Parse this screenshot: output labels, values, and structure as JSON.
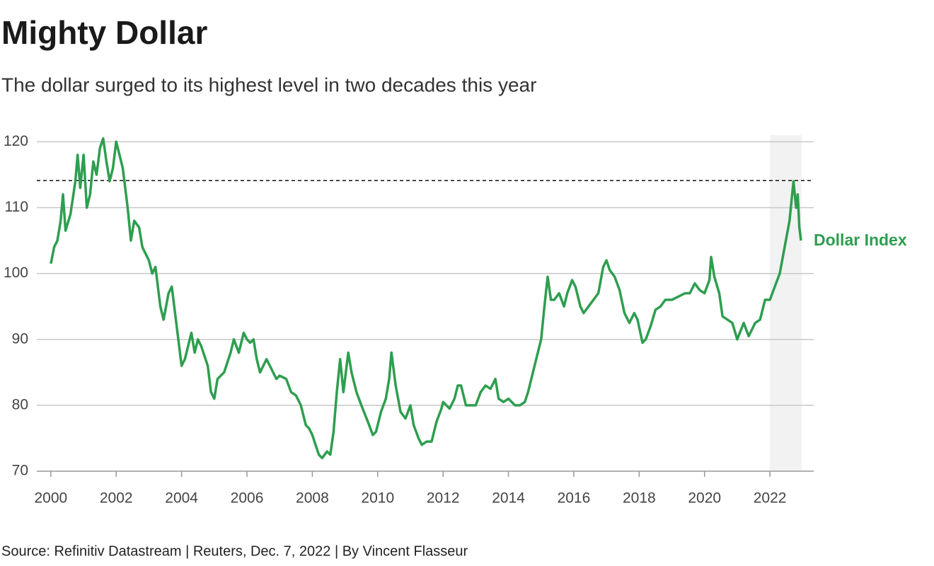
{
  "chart_data": {
    "type": "line",
    "title": "Mighty Dollar",
    "subtitle": "The dollar surged to its highest level in two decades this year",
    "source": "Source: Refinitiv Datastream | Reuters, Dec. 7, 2022 | By Vincent Flasseur",
    "xlim": [
      1999.57,
      2023.34
    ],
    "xticks": [
      2000,
      2002,
      2004,
      2006,
      2008,
      2010,
      2012,
      2014,
      2016,
      2018,
      2020,
      2022
    ],
    "ylim": [
      70,
      121
    ],
    "yticks": [
      70,
      80,
      90,
      100,
      110,
      120
    ],
    "grid": true,
    "reference_line": 114.1,
    "highlight": [
      2022,
      2022.97
    ],
    "x": [
      2000.0,
      2000.1,
      2000.2,
      2000.3,
      2000.37,
      2000.45,
      2000.6,
      2000.75,
      2000.82,
      2000.9,
      2001.0,
      2001.1,
      2001.2,
      2001.3,
      2001.4,
      2001.5,
      2001.6,
      2001.7,
      2001.8,
      2001.9,
      2002.0,
      2002.1,
      2002.2,
      2002.35,
      2002.45,
      2002.55,
      2002.7,
      2002.8,
      2003.0,
      2003.1,
      2003.2,
      2003.35,
      2003.45,
      2003.6,
      2003.7,
      2003.8,
      2003.9,
      2004.0,
      2004.1,
      2004.2,
      2004.3,
      2004.4,
      2004.5,
      2004.6,
      2004.8,
      2004.9,
      2005.0,
      2005.1,
      2005.3,
      2005.5,
      2005.6,
      2005.75,
      2005.9,
      2006.0,
      2006.1,
      2006.2,
      2006.3,
      2006.4,
      2006.5,
      2006.6,
      2006.75,
      2006.9,
      2007.0,
      2007.2,
      2007.35,
      2007.5,
      2007.65,
      2007.8,
      2007.9,
      2008.0,
      2008.2,
      2008.3,
      2008.45,
      2008.55,
      2008.65,
      2008.75,
      2008.85,
      2008.95,
      2009.1,
      2009.2,
      2009.35,
      2009.5,
      2009.7,
      2009.85,
      2009.95,
      2010.1,
      2010.25,
      2010.35,
      2010.42,
      2010.55,
      2010.7,
      2010.85,
      2011.0,
      2011.1,
      2011.25,
      2011.35,
      2011.5,
      2011.65,
      2011.8,
      2011.95,
      2012.0,
      2012.2,
      2012.35,
      2012.45,
      2012.55,
      2012.7,
      2012.85,
      2013.0,
      2013.15,
      2013.3,
      2013.45,
      2013.6,
      2013.7,
      2013.85,
      2014.0,
      2014.2,
      2014.35,
      2014.5,
      2014.6,
      2014.75,
      2014.9,
      2015.0,
      2015.1,
      2015.2,
      2015.3,
      2015.4,
      2015.55,
      2015.7,
      2015.8,
      2015.95,
      2016.05,
      2016.2,
      2016.3,
      2016.45,
      2016.6,
      2016.75,
      2016.9,
      2017.0,
      2017.1,
      2017.25,
      2017.4,
      2017.55,
      2017.7,
      2017.85,
      2017.95,
      2018.1,
      2018.2,
      2018.35,
      2018.5,
      2018.65,
      2018.8,
      2019.0,
      2019.2,
      2019.4,
      2019.55,
      2019.7,
      2019.85,
      2020.0,
      2020.15,
      2020.2,
      2020.3,
      2020.45,
      2020.55,
      2020.7,
      2020.85,
      2021.0,
      2021.2,
      2021.35,
      2021.55,
      2021.7,
      2021.85,
      2022.0,
      2022.15,
      2022.3,
      2022.45,
      2022.6,
      2022.72,
      2022.8,
      2022.85,
      2022.9,
      2022.95
    ],
    "series": [
      {
        "name": "Dollar Index",
        "color": "#2e9e4f",
        "values": [
          101.5,
          104,
          105,
          108,
          112,
          106.5,
          109,
          114,
          118,
          113,
          118,
          110,
          112,
          117,
          115,
          119,
          120.5,
          117,
          114,
          116,
          120,
          118,
          116,
          110,
          105,
          108,
          107,
          104,
          102,
          100,
          101,
          95,
          93,
          97,
          98,
          94,
          90,
          86,
          87,
          89,
          91,
          88,
          90,
          89,
          86,
          82,
          81,
          84,
          85,
          88,
          90,
          88,
          91,
          90,
          89.5,
          90,
          87,
          85,
          86,
          87,
          85.5,
          84,
          84.5,
          84,
          82,
          81.5,
          80,
          77,
          76.5,
          75.5,
          72.5,
          72,
          73,
          72.5,
          76,
          82,
          87,
          82,
          88,
          85,
          82,
          80,
          77.5,
          75.5,
          76,
          79,
          81,
          84,
          88,
          83,
          79,
          78,
          80,
          77,
          75,
          74,
          74.5,
          74.5,
          77.5,
          79.5,
          80.5,
          79.5,
          81,
          83,
          83,
          80,
          80,
          80,
          82,
          83,
          82.5,
          84,
          81,
          80.5,
          81,
          80,
          80,
          80.5,
          82,
          85,
          88,
          90,
          95,
          99.5,
          96,
          96,
          97,
          95,
          97,
          99,
          98,
          95,
          94,
          95,
          96,
          97,
          101,
          102,
          100.5,
          99.5,
          97.5,
          94,
          92.5,
          94,
          93,
          89.5,
          90,
          92,
          94.5,
          95,
          96,
          96,
          96.5,
          97,
          97,
          98.5,
          97.5,
          97,
          99,
          102.5,
          99.5,
          97,
          93.5,
          93,
          92.5,
          90,
          92.5,
          90.5,
          92.5,
          93,
          96,
          96,
          98,
          100,
          104,
          108,
          114,
          110,
          112,
          107,
          105
        ]
      }
    ]
  }
}
